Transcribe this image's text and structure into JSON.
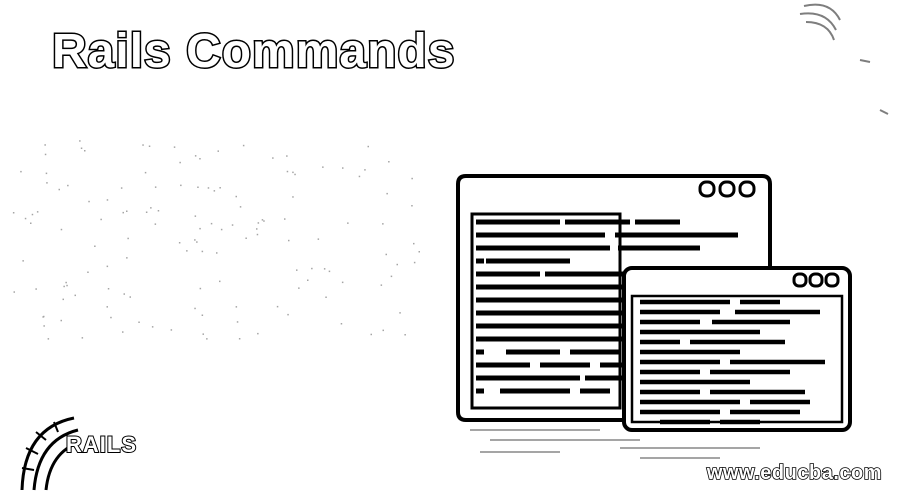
{
  "title": "Rails Commands",
  "logo": {
    "wordmark": "RAILS",
    "icon": "rails-logo-icon"
  },
  "watermark": "www.educba.com",
  "illustration": {
    "icon": "code-windows-icon",
    "window_buttons": [
      "circle",
      "circle",
      "circle"
    ]
  }
}
